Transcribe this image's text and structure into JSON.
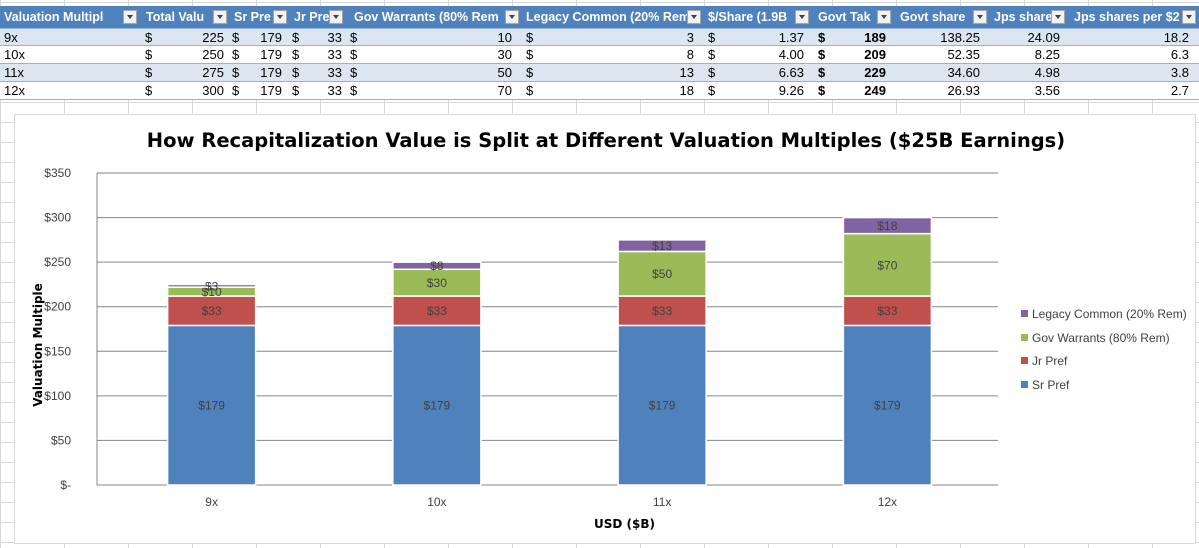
{
  "table": {
    "headers": [
      "Valuation Multipl",
      "Total Valu",
      "Sr Pre",
      "Jr Pre",
      "Gov Warrants (80% Rem",
      "Legacy Common (20% Rem",
      "$/Share (1.9B",
      "Govt Tak",
      "Govt share",
      "Jps share",
      "Jps shares per $2"
    ],
    "rows": [
      {
        "multiple": "9x",
        "total_cur": "$",
        "total": "225",
        "sr_cur": "$",
        "sr": "179",
        "jr_cur": "$",
        "jr": "33",
        "gov_cur": "$",
        "gov": "10",
        "legacy_cur": "$",
        "legacy": "3",
        "per_share_cur": "$",
        "per_share": "1.37",
        "govt_take_cur": "$",
        "govt_take": "189",
        "govt_share": "138.25",
        "jps_share": "24.09",
        "jps_per": "18.2"
      },
      {
        "multiple": "10x",
        "total_cur": "$",
        "total": "250",
        "sr_cur": "$",
        "sr": "179",
        "jr_cur": "$",
        "jr": "33",
        "gov_cur": "$",
        "gov": "30",
        "legacy_cur": "$",
        "legacy": "8",
        "per_share_cur": "$",
        "per_share": "4.00",
        "govt_take_cur": "$",
        "govt_take": "209",
        "govt_share": "52.35",
        "jps_share": "8.25",
        "jps_per": "6.3"
      },
      {
        "multiple": "11x",
        "total_cur": "$",
        "total": "275",
        "sr_cur": "$",
        "sr": "179",
        "jr_cur": "$",
        "jr": "33",
        "gov_cur": "$",
        "gov": "50",
        "legacy_cur": "$",
        "legacy": "13",
        "per_share_cur": "$",
        "per_share": "6.63",
        "govt_take_cur": "$",
        "govt_take": "229",
        "govt_share": "34.60",
        "jps_share": "4.98",
        "jps_per": "3.8"
      },
      {
        "multiple": "12x",
        "total_cur": "$",
        "total": "300",
        "sr_cur": "$",
        "sr": "179",
        "jr_cur": "$",
        "jr": "33",
        "gov_cur": "$",
        "gov": "70",
        "legacy_cur": "$",
        "legacy": "18",
        "per_share_cur": "$",
        "per_share": "9.26",
        "govt_take_cur": "$",
        "govt_take": "249",
        "govt_share": "26.93",
        "jps_share": "3.56",
        "jps_per": "2.7"
      }
    ]
  },
  "colors": {
    "header_bg": "#4f81bd",
    "band_bg": "#dce6f1",
    "sr_pref": "#4f81bd",
    "jr_pref": "#c0504d",
    "gov_warrants": "#9bbb59",
    "legacy_common": "#8064a2"
  },
  "chart_data": {
    "type": "bar",
    "stacked": true,
    "title": "How Recapitalization Value is Split at Different Valuation Multiples ($25B Earnings)",
    "xlabel": "USD ($B)",
    "ylabel": "Valuation Multiple",
    "categories": [
      "9x",
      "10x",
      "11x",
      "12x"
    ],
    "series": [
      {
        "name": "Sr Pref",
        "values": [
          179,
          179,
          179,
          179
        ],
        "labels": [
          "$179",
          "$179",
          "$179",
          "$179"
        ]
      },
      {
        "name": "Jr Pref",
        "values": [
          33,
          33,
          33,
          33
        ],
        "labels": [
          "$33",
          "$33",
          "$33",
          "$33"
        ]
      },
      {
        "name": "Gov Warrants (80% Rem)",
        "values": [
          10,
          30,
          50,
          70
        ],
        "labels": [
          "$10",
          "$30",
          "$50",
          "$70"
        ]
      },
      {
        "name": "Legacy Common (20% Rem)",
        "values": [
          3,
          8,
          13,
          18
        ],
        "labels": [
          "$3",
          "$8",
          "$13",
          "$18"
        ]
      }
    ],
    "ylim": [
      0,
      350
    ],
    "yticks": [
      0,
      50,
      100,
      150,
      200,
      250,
      300,
      350
    ],
    "ytick_labels": [
      "$-",
      "$50",
      "$100",
      "$150",
      "$200",
      "$250",
      "$300",
      "$350"
    ],
    "grid": true,
    "legend_position": "right",
    "legend": [
      "Legacy Common (20% Rem)",
      "Gov Warrants (80% Rem)",
      "Jr Pref",
      "Sr Pref"
    ]
  }
}
